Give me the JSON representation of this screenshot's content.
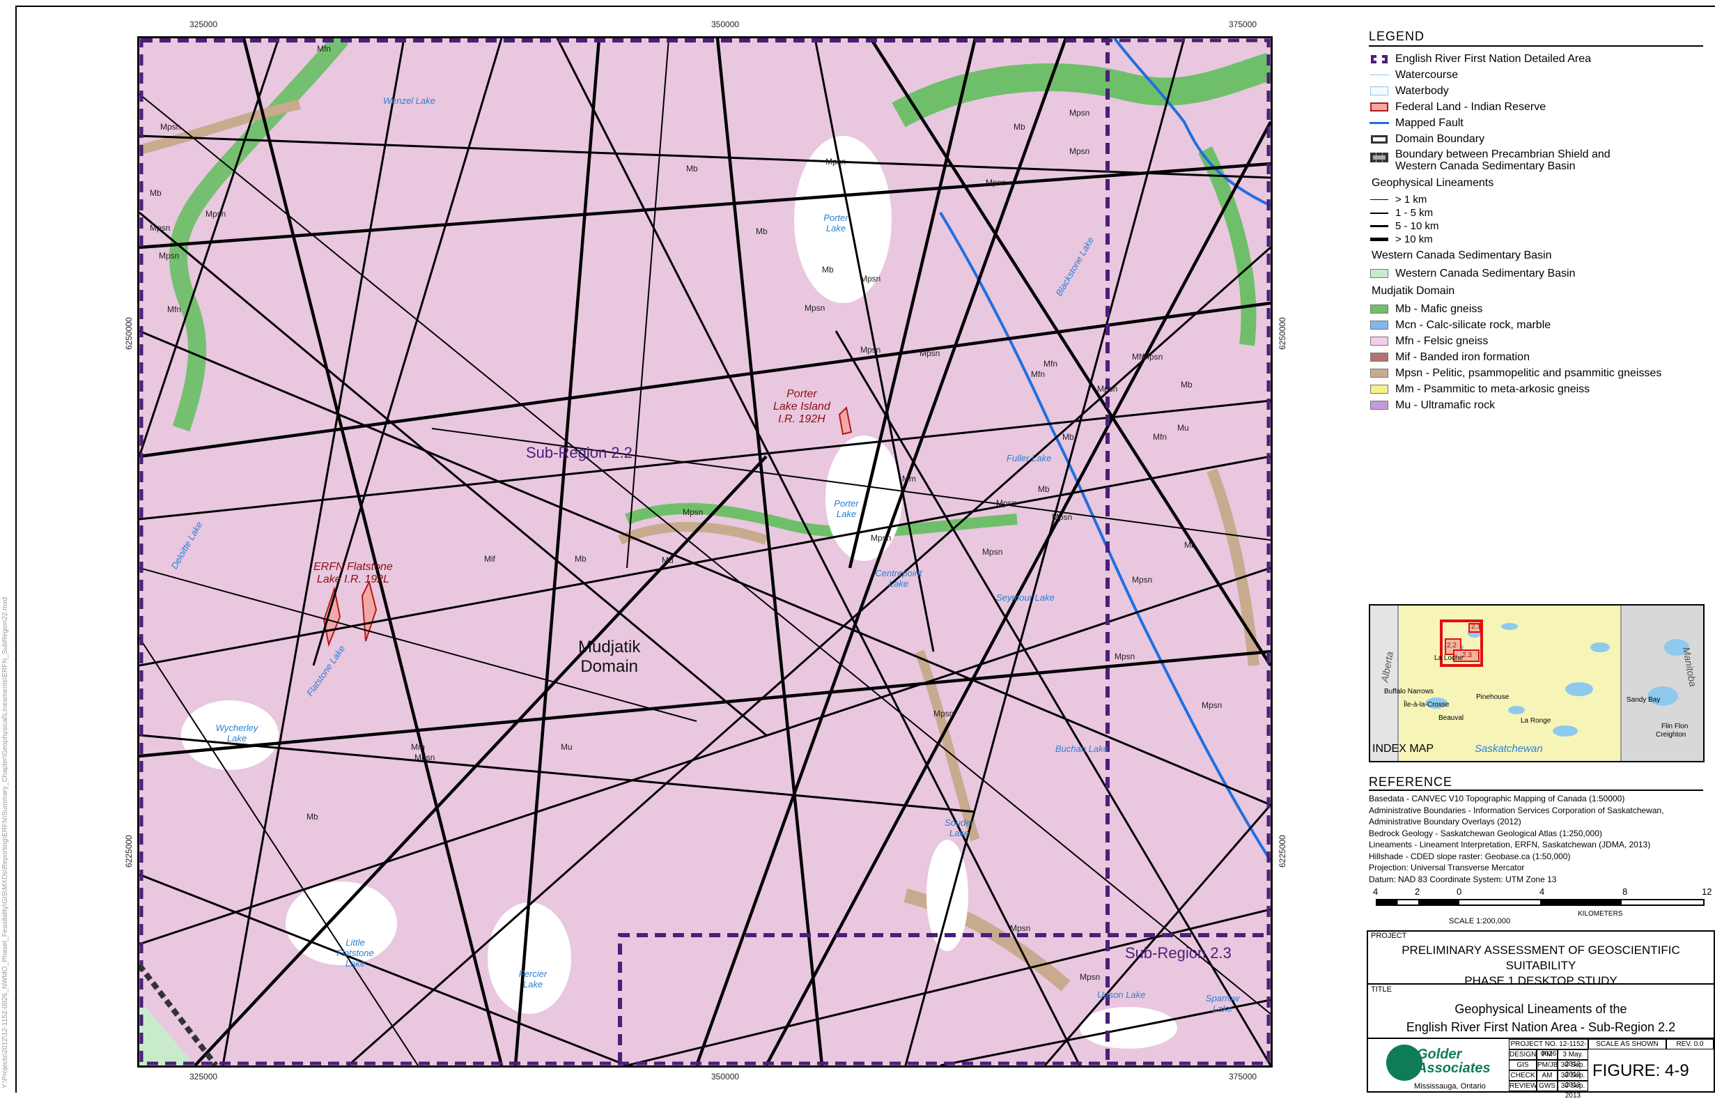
{
  "coords": {
    "top": [
      "325000",
      "350000",
      "375000"
    ],
    "bottom": [
      "325000",
      "350000",
      "375000"
    ],
    "left": [
      "6250000",
      "6225000"
    ],
    "right": [
      "6250000",
      "6225000"
    ]
  },
  "side_path": "Y:\\Projects\\2012\\12-1152-0026_NWMO_PhaseI_Feasibility\\GIS\\MXDs\\Reporting\\ERFN\\Summary_Chapter\\Geophysical\\Lineaments\\ERFN_SubRegion22.mxd",
  "map_labels": {
    "subregion_22": "Sub-Region 2.2",
    "subregion_23": "Sub-Region 2.3",
    "domain": [
      "Mudjatik",
      "Domain"
    ],
    "ir_porter": [
      "Porter",
      "Lake Island",
      "I.R. 192H"
    ],
    "ir_flatstone": [
      "ERFN Flatstone",
      "Lake I.R. 192L"
    ],
    "lakes": [
      {
        "name": "Wenzel Lake"
      },
      {
        "name": "Porter Lake"
      },
      {
        "name": "Porter Lake"
      },
      {
        "name": "Fuller Lake"
      },
      {
        "name": "Blackstone Lake"
      },
      {
        "name": "Centrepoint Lake"
      },
      {
        "name": "Seymour Lake"
      },
      {
        "name": "Buchan Lake"
      },
      {
        "name": "Souder Lake"
      },
      {
        "name": "Wycherley Lake"
      },
      {
        "name": "Flatstone Lake"
      },
      {
        "name": "Little Flatstone Lake"
      },
      {
        "name": "Fercier Lake"
      },
      {
        "name": "Upson Lake"
      },
      {
        "name": "Sparrow Lake"
      },
      {
        "name": "Deloitte Lake"
      }
    ],
    "geo": [
      "Mfn",
      "Mpsn",
      "Mb",
      "Mpsn",
      "Mpsn",
      "Mpsn",
      "Mfn",
      "Mb",
      "Mpsn",
      "Mpsn",
      "Mb",
      "Mpsn",
      "Mb",
      "Mpsn",
      "Mpsn",
      "Mpsn",
      "Mfn",
      "Mpsn",
      "Mpsn",
      "Mb",
      "Mfn",
      "Mu",
      "Mpsn",
      "Mpsn",
      "Mb",
      "Mpsn",
      "Mm",
      "Mpsn",
      "Mpsn",
      "Mpsn",
      "Mpsn",
      "Mpsn",
      "Mpsn",
      "Mu",
      "Mm",
      "Mpsn",
      "Mb",
      "Mpsn",
      "Mb",
      "Mfn",
      "Mpsn",
      "Mu",
      "Mif",
      "Mb",
      "Mb",
      "Mfn",
      "Mpsn",
      "Mpsn",
      "Mb"
    ]
  },
  "legend": {
    "title": "LEGEND",
    "items": [
      {
        "label": "English River First Nation Detailed Area",
        "symbol": "detail-area"
      },
      {
        "label": "Watercourse",
        "symbol": "watercourse"
      },
      {
        "label": "Waterbody",
        "symbol": "waterbody"
      },
      {
        "label": "Federal Land - Indian Reserve",
        "symbol": "reserve"
      },
      {
        "label": "Mapped Fault",
        "symbol": "fault"
      },
      {
        "label": "Domain Boundary",
        "symbol": "domain-boundary"
      },
      {
        "label": "Boundary between Precambrian Shield and",
        "label2": "Western Canada Sedimentary Basin",
        "symbol": "shield-boundary"
      }
    ],
    "lineaments_head": "Geophysical Lineaments",
    "lineaments": [
      {
        "label": "> 1 km",
        "width": 1
      },
      {
        "label": "1 - 5 km",
        "width": 2
      },
      {
        "label": "5 - 10 km",
        "width": 3
      },
      {
        "label": "> 10 km",
        "width": 4.5
      }
    ],
    "wcsb_head": "Western Canada Sedimentary Basin",
    "wcsb_item": {
      "label": "Western Canada Sedimentary Basin",
      "color": "#c8eccb"
    },
    "mudjatik_head": "Mudjatik Domain",
    "units": [
      {
        "label": "Mb - Mafic gneiss",
        "color": "#6fbf6a"
      },
      {
        "label": "Mcn - Calc-silicate rock, marble",
        "color": "#7fb7ee"
      },
      {
        "label": "Mfn - Felsic gneiss",
        "color": "#f5cdea"
      },
      {
        "label": "Mif - Banded iron formation",
        "color": "#b5736f"
      },
      {
        "label": "Mpsn - Pelitic, psammopelitic and psammitic gneisses",
        "color": "#c8aa8e"
      },
      {
        "label": "Mm - Psammitic to meta-arkosic gneiss",
        "color": "#f4f08a"
      },
      {
        "label": "Mu - Ultramafic rock",
        "color": "#c59ad6"
      }
    ]
  },
  "index_map": {
    "title": "INDEX MAP",
    "province_sk": "Saskatchewan",
    "province_ab": "Alberta",
    "province_mb": "Manitoba",
    "places": [
      "La Loche",
      "Buffalo Narrows",
      "Île-à-la-Crosse",
      "Beauval",
      "Pinehouse",
      "La Ronge",
      "Sandy Bay",
      "Flin Flon",
      "Creighton"
    ],
    "boxes": [
      "2.1",
      "2.2",
      "2.3"
    ]
  },
  "reference": {
    "title": "REFERENCE",
    "lines": [
      "Basedata - CANVEC V10 Topographic Mapping of Canada (1:50000)",
      "Administrative Boundaries - Information Services Corporation of Saskatchewan,",
      "Administrative Boundary Overlays (2012)",
      "Bedrock Geology - Saskatchewan Geological Atlas (1:250,000)",
      "Lineaments - Lineament Interpretation, ERFN, Saskatchewan (JDMA, 2013)",
      "Hillshade - CDED slope raster: Geobase.ca (1:50,000)",
      "Projection: Universal Transverse Mercator",
      "Datum: NAD 83  Coordinate System: UTM Zone 13"
    ]
  },
  "scale": {
    "ticks": [
      "4",
      "2",
      "0",
      "4",
      "8",
      "12"
    ],
    "text": "SCALE  1:200,000",
    "units": "KILOMETERS"
  },
  "title_block": {
    "project_label": "PROJECT",
    "project": [
      "PRELIMINARY ASSESSMENT OF GEOSCIENTIFIC SUITABILITY",
      "PHASE 1 DESKTOP STUDY"
    ],
    "title_label": "TITLE",
    "title": [
      "Geophysical Lineaments of the",
      "English River First Nation Area - Sub-Region 2.2"
    ],
    "company": [
      "Golder",
      "Associates"
    ],
    "location": "Mississauga, Ontario",
    "project_no_label": "PROJECT NO. 12-1152-0026",
    "scale_label": "SCALE AS SHOWN",
    "rev_label": "REV. 0.0",
    "rows": [
      {
        "role": "DESIGN",
        "who": "PM",
        "date": "3 May. 2012"
      },
      {
        "role": "GIS",
        "who": "PM/JB",
        "date": "30 Sep. 2013"
      },
      {
        "role": "CHECK",
        "who": "AM",
        "date": "30 Sep. 2013"
      },
      {
        "role": "REVIEW",
        "who": "GWS",
        "date": "30 Sep. 2013"
      }
    ],
    "figure": "FIGURE: 4-9"
  }
}
